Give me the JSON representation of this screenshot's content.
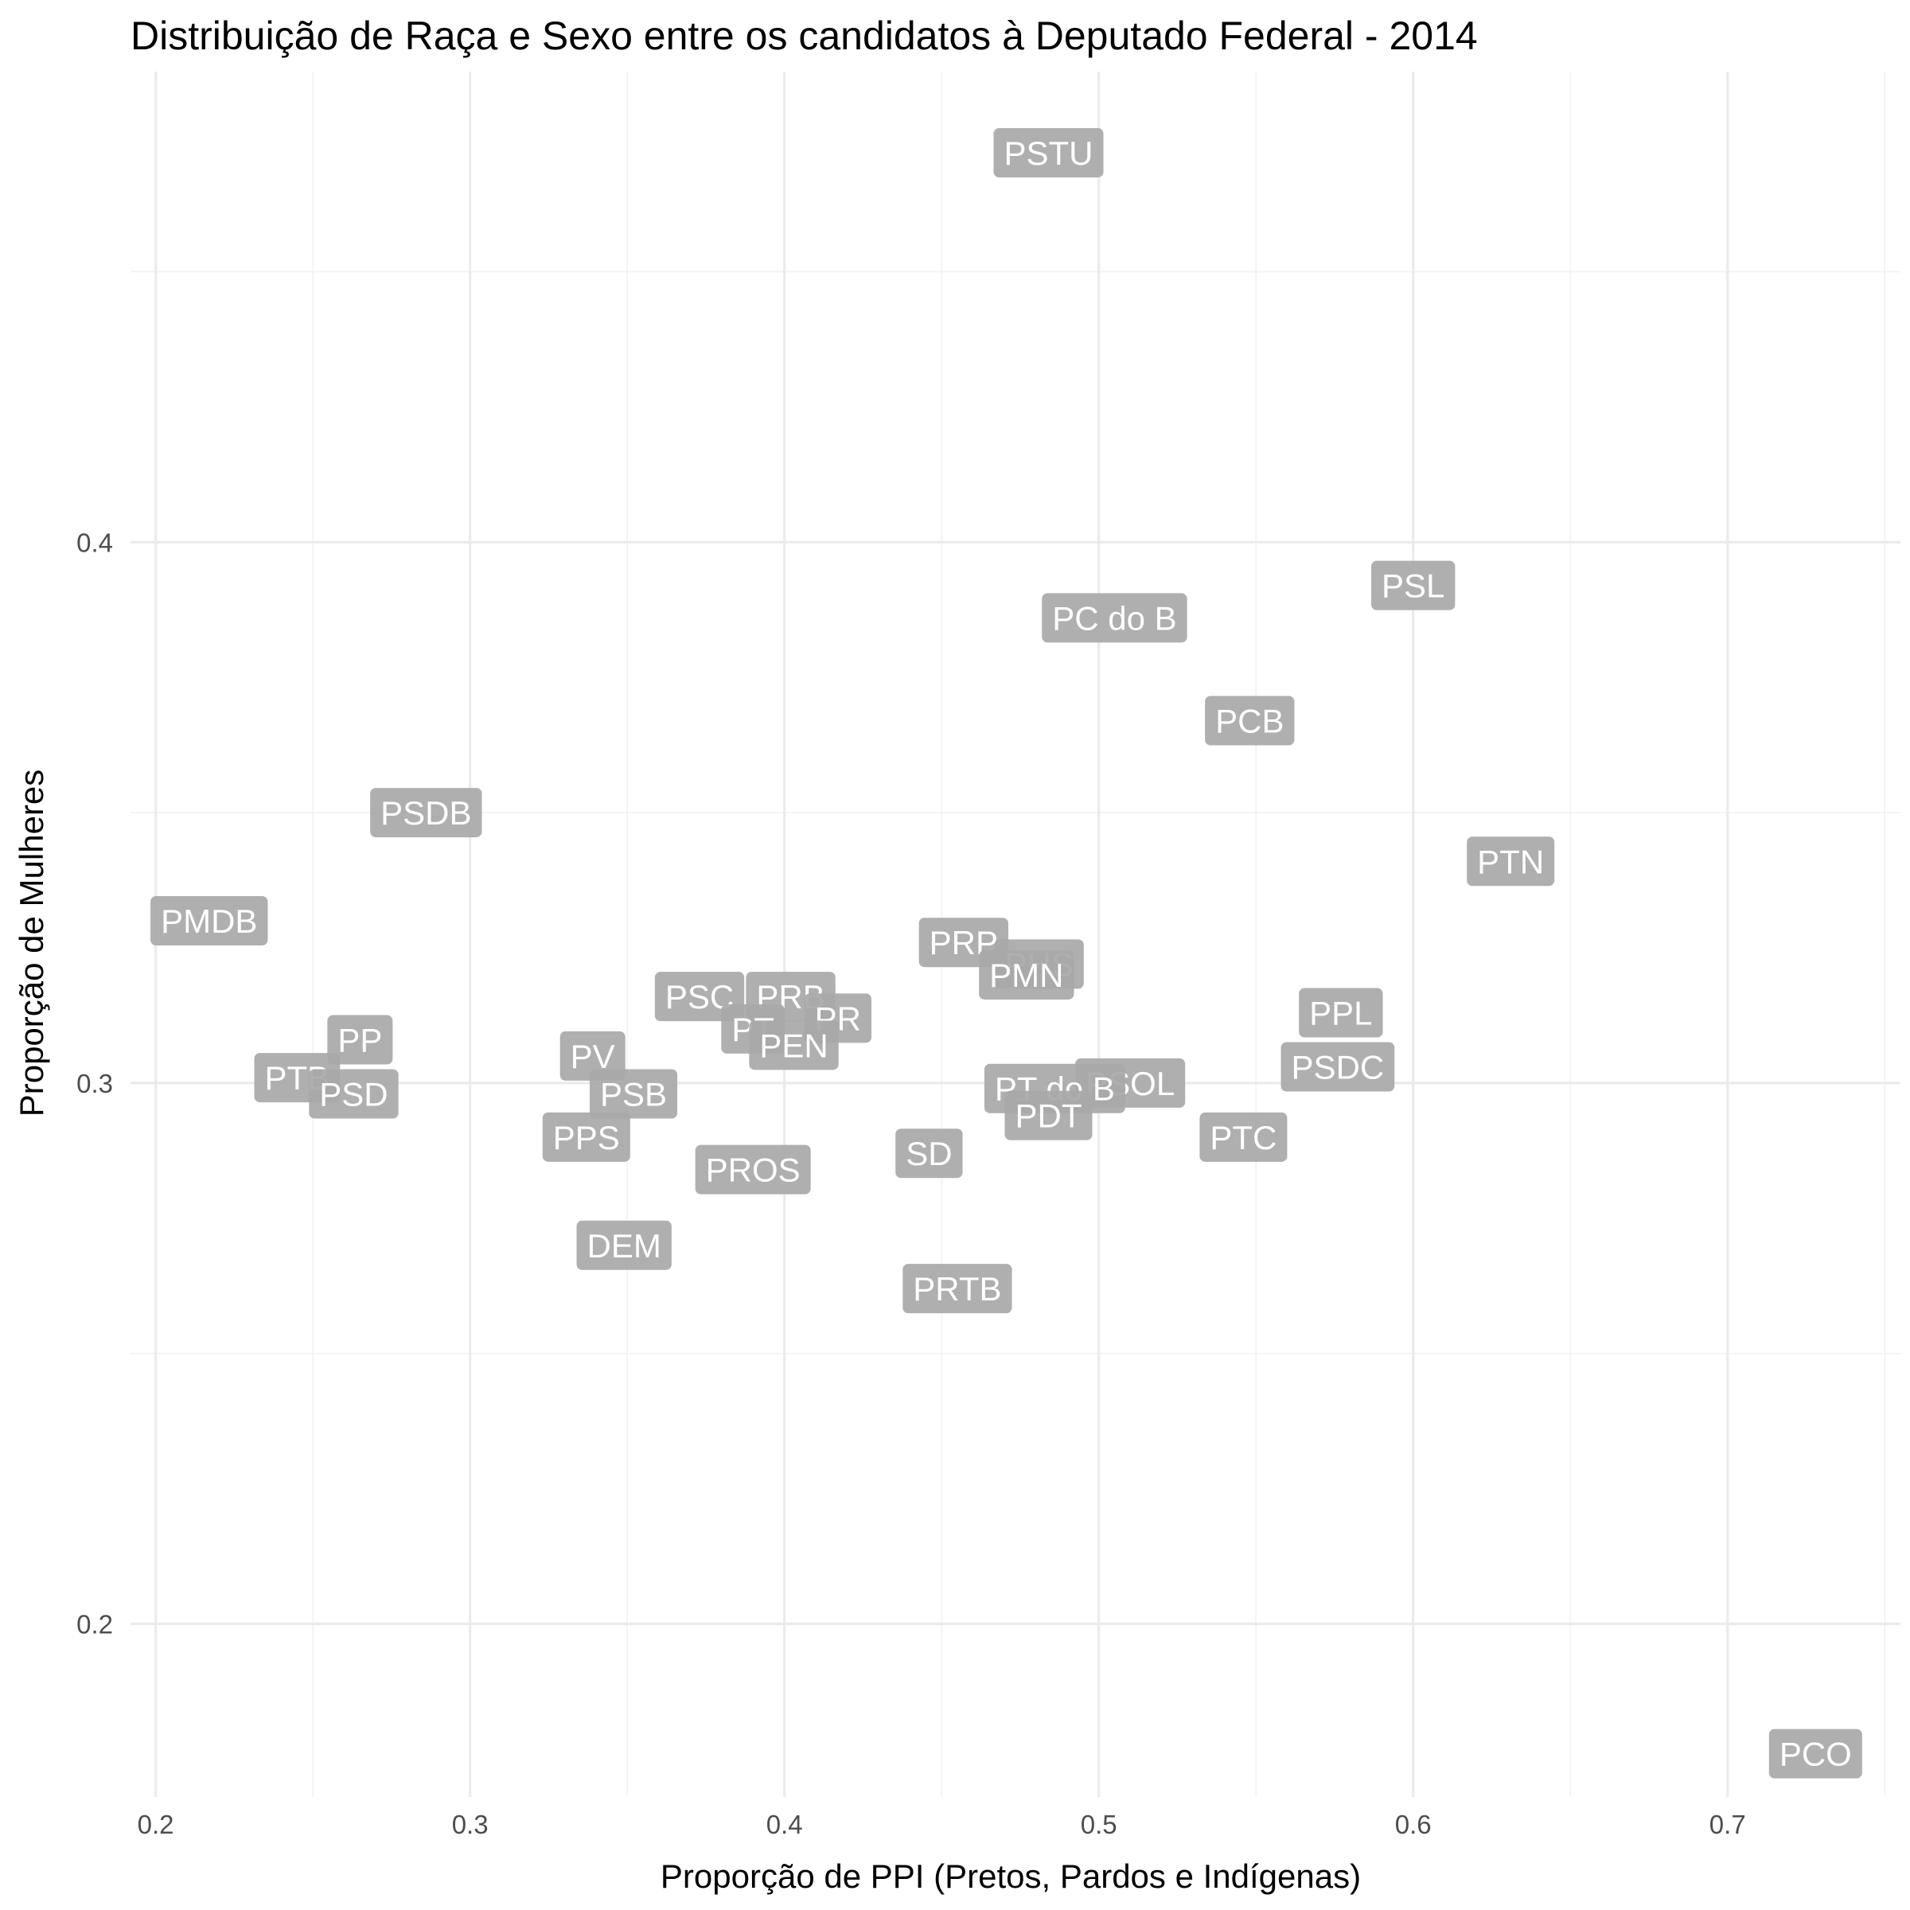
{
  "chart_data": {
    "type": "scatter",
    "title": "Distribuição de Raça e Sexo entre os candidatos à Deputado Federal - 2014",
    "xlabel": "Proporção de PPI (Pretos, Pardos e Indígenas)",
    "ylabel": "Proporção de Mulheres",
    "xlim": [
      0.192,
      0.755
    ],
    "ylim": [
      0.168,
      0.487
    ],
    "x_ticks": [
      0.2,
      0.3,
      0.4,
      0.5,
      0.6,
      0.7
    ],
    "x_tick_labels": [
      "0.2",
      "0.3",
      "0.4",
      "0.5",
      "0.6",
      "0.7"
    ],
    "y_ticks": [
      0.2,
      0.3,
      0.4
    ],
    "y_tick_labels": [
      "0.2",
      "0.3",
      "0.4"
    ],
    "grid": true,
    "point_style": "label",
    "label_color": "#a9a9a9",
    "points": [
      {
        "label": "PSTU",
        "x": 0.484,
        "y": 0.472
      },
      {
        "label": "PSL",
        "x": 0.6,
        "y": 0.392
      },
      {
        "label": "PC do B",
        "x": 0.505,
        "y": 0.386
      },
      {
        "label": "PCB",
        "x": 0.548,
        "y": 0.367
      },
      {
        "label": "PSDB",
        "x": 0.286,
        "y": 0.35
      },
      {
        "label": "PMDB",
        "x": 0.217,
        "y": 0.33
      },
      {
        "label": "PTN",
        "x": 0.631,
        "y": 0.341
      },
      {
        "label": "PRP",
        "x": 0.457,
        "y": 0.326
      },
      {
        "label": "PHS",
        "x": 0.481,
        "y": 0.322
      },
      {
        "label": "PMN",
        "x": 0.477,
        "y": 0.32
      },
      {
        "label": "PSC",
        "x": 0.373,
        "y": 0.316
      },
      {
        "label": "PRB",
        "x": 0.402,
        "y": 0.316
      },
      {
        "label": "PR",
        "x": 0.417,
        "y": 0.312
      },
      {
        "label": "PT",
        "x": 0.39,
        "y": 0.31
      },
      {
        "label": "PEN",
        "x": 0.403,
        "y": 0.307
      },
      {
        "label": "PPL",
        "x": 0.577,
        "y": 0.313
      },
      {
        "label": "PP",
        "x": 0.265,
        "y": 0.308
      },
      {
        "label": "PV",
        "x": 0.339,
        "y": 0.305
      },
      {
        "label": "PSDC",
        "x": 0.576,
        "y": 0.303
      },
      {
        "label": "PTB",
        "x": 0.245,
        "y": 0.301
      },
      {
        "label": "PSD",
        "x": 0.263,
        "y": 0.298
      },
      {
        "label": "PSB",
        "x": 0.352,
        "y": 0.298
      },
      {
        "label": "PSOL",
        "x": 0.51,
        "y": 0.3
      },
      {
        "label": "PT do B",
        "x": 0.486,
        "y": 0.299
      },
      {
        "label": "PDT",
        "x": 0.484,
        "y": 0.294
      },
      {
        "label": "PPS",
        "x": 0.337,
        "y": 0.29
      },
      {
        "label": "PTC",
        "x": 0.546,
        "y": 0.29
      },
      {
        "label": "SD",
        "x": 0.446,
        "y": 0.287
      },
      {
        "label": "PROS",
        "x": 0.39,
        "y": 0.284
      },
      {
        "label": "DEM",
        "x": 0.349,
        "y": 0.27
      },
      {
        "label": "PRTB",
        "x": 0.455,
        "y": 0.262
      },
      {
        "label": "PCO",
        "x": 0.728,
        "y": 0.176
      }
    ]
  }
}
